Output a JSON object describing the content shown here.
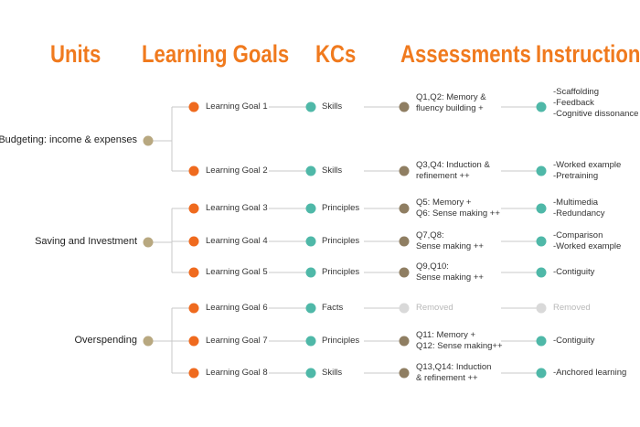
{
  "headers": {
    "units": "Units",
    "goals": "Learning Goals",
    "kcs": "KCs",
    "assessments": "Assessments",
    "instruction": "Instruction"
  },
  "colors": {
    "header": "#f07a1e",
    "unit_node": "#b8a880",
    "goal_node": "#ef6a1e",
    "kc_node": "#4fb8a8",
    "assessment_node": "#8f7e62",
    "instruction_node": "#4fb8a8",
    "removed_node": "#d9d9d9",
    "line": "#c8c8c8"
  },
  "units": [
    {
      "label": "Budgeting: income & expenses"
    },
    {
      "label": "Saving and Investment"
    },
    {
      "label": "Overspending"
    }
  ],
  "rows": [
    {
      "goal": "Learning Goal 1",
      "kc": "Skills",
      "assessment": "Q1,Q2: Memory &\nfluency building +",
      "instruction": "-Scaffolding\n-Feedback\n-Cognitive dissonance",
      "removed": false
    },
    {
      "goal": "Learning Goal 2",
      "kc": "Skills",
      "assessment": "Q3,Q4: Induction &\nrefinement ++",
      "instruction": "-Worked example\n-Pretraining",
      "removed": false
    },
    {
      "goal": "Learning Goal 3",
      "kc": "Principles",
      "assessment": "Q5: Memory +\nQ6: Sense making ++",
      "instruction": "-Multimedia\n-Redundancy",
      "removed": false
    },
    {
      "goal": "Learning Goal 4",
      "kc": "Principles",
      "assessment": "Q7,Q8:\nSense making ++",
      "instruction": "-Comparison\n-Worked example",
      "removed": false
    },
    {
      "goal": "Learning Goal 5",
      "kc": "Principles",
      "assessment": "Q9,Q10:\nSense making ++",
      "instruction": "-Contiguity",
      "removed": false
    },
    {
      "goal": "Learning Goal 6",
      "kc": "Facts",
      "assessment": "Removed",
      "instruction": "Removed",
      "removed": true
    },
    {
      "goal": "Learning Goal 7",
      "kc": "Principles",
      "assessment": "Q11: Memory +\nQ12: Sense making++",
      "instruction": "-Contiguity",
      "removed": false
    },
    {
      "goal": "Learning Goal 8",
      "kc": "Skills",
      "assessment": "Q13,Q14: Induction\n& refinement ++",
      "instruction": "-Anchored learning",
      "removed": false
    }
  ]
}
